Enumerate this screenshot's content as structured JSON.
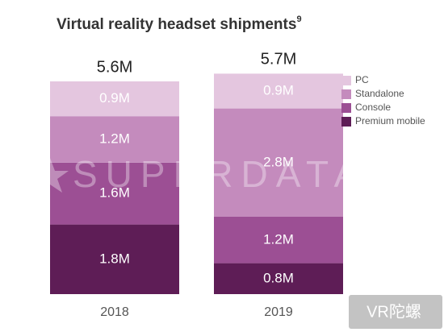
{
  "chart_data": {
    "type": "stacked_bar",
    "title": "Virtual reality headset shipments",
    "title_footnote": "9",
    "watermark": "SUPERDATA",
    "corner_logo": "VR陀螺",
    "categories": [
      "2018",
      "2019"
    ],
    "series": [
      {
        "name": "Premium mobile",
        "color": "#5e1d56",
        "values": [
          1.8,
          0.8
        ],
        "value_labels": [
          "1.8M",
          "0.8M"
        ]
      },
      {
        "name": "Console",
        "color": "#9c4f94",
        "values": [
          1.6,
          1.2
        ],
        "value_labels": [
          "1.6M",
          "1.2M"
        ]
      },
      {
        "name": "Standalone",
        "color": "#c48bbd",
        "values": [
          1.2,
          2.8
        ],
        "value_labels": [
          "1.2M",
          "2.8M"
        ]
      },
      {
        "name": "PC",
        "color": "#e4c6df",
        "values": [
          0.9,
          0.9
        ],
        "value_labels": [
          "0.9M",
          "0.9M"
        ]
      }
    ],
    "totals": {
      "values": [
        5.6,
        5.7
      ],
      "value_labels": [
        "5.6M",
        "5.7M"
      ]
    },
    "legend": "top-right"
  }
}
